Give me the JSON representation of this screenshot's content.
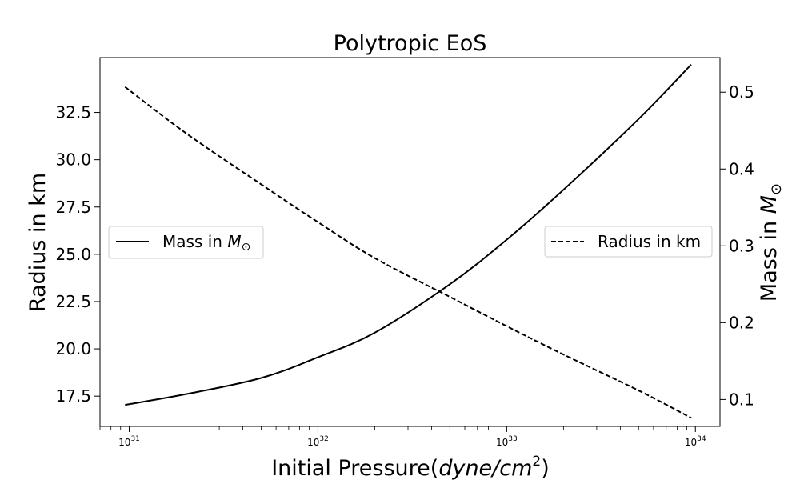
{
  "chart_data": {
    "type": "line",
    "title": "Polytropic EoS",
    "xlabel": {
      "prefix": "Initial Pressure(",
      "math": "dyne/cm",
      "exp": "2",
      "suffix": ")"
    },
    "ylabel_left": "Radius in km",
    "ylabel_right": {
      "prefix": "Mass in ",
      "math": "M",
      "sub": "⊙"
    },
    "x_scale": "log",
    "xlim": [
      7e+30,
      1.35e+34
    ],
    "x_ticks": [
      {
        "base": "10",
        "exp": "31",
        "value": 1e+31
      },
      {
        "base": "10",
        "exp": "32",
        "value": 1e+32
      },
      {
        "base": "10",
        "exp": "33",
        "value": 1e+33
      },
      {
        "base": "10",
        "exp": "34",
        "value": 1e+34
      }
    ],
    "y_left": {
      "lim": [
        15.9,
        35.4
      ],
      "ticks": [
        "17.5",
        "20.0",
        "22.5",
        "25.0",
        "27.5",
        "30.0",
        "32.5"
      ],
      "tick_values": [
        17.5,
        20.0,
        22.5,
        25.0,
        27.5,
        30.0,
        32.5
      ]
    },
    "y_right": {
      "lim": [
        0.065,
        0.545
      ],
      "ticks": [
        "0.1",
        "0.2",
        "0.3",
        "0.4",
        "0.5"
      ],
      "tick_values": [
        0.1,
        0.2,
        0.3,
        0.4,
        0.5
      ]
    },
    "series": [
      {
        "name": {
          "prefix": "Mass in ",
          "math": "M",
          "sub": "⊙"
        },
        "axis": "right",
        "style": "solid",
        "color": "#000000",
        "x": [
          9.5e+30,
          2e+31,
          5e+31,
          1e+32,
          2e+32,
          5e+32,
          1e+33,
          2e+33,
          5e+33,
          9.5e+33
        ],
        "y": [
          0.093,
          0.107,
          0.128,
          0.155,
          0.187,
          0.25,
          0.308,
          0.373,
          0.465,
          0.536
        ]
      },
      {
        "name": "Radius in km",
        "axis": "left",
        "style": "dashed",
        "color": "#000000",
        "x": [
          9.5e+30,
          2e+31,
          5e+31,
          1e+32,
          2e+32,
          5e+32,
          1e+33,
          2e+33,
          5e+33,
          9.5e+33
        ],
        "y": [
          33.85,
          31.4,
          28.7,
          26.7,
          24.8,
          22.75,
          21.2,
          19.7,
          17.8,
          16.35
        ]
      }
    ],
    "legends": [
      {
        "placement": "center-left",
        "series_index": 0
      },
      {
        "placement": "center-right",
        "series_index": 1
      }
    ]
  }
}
